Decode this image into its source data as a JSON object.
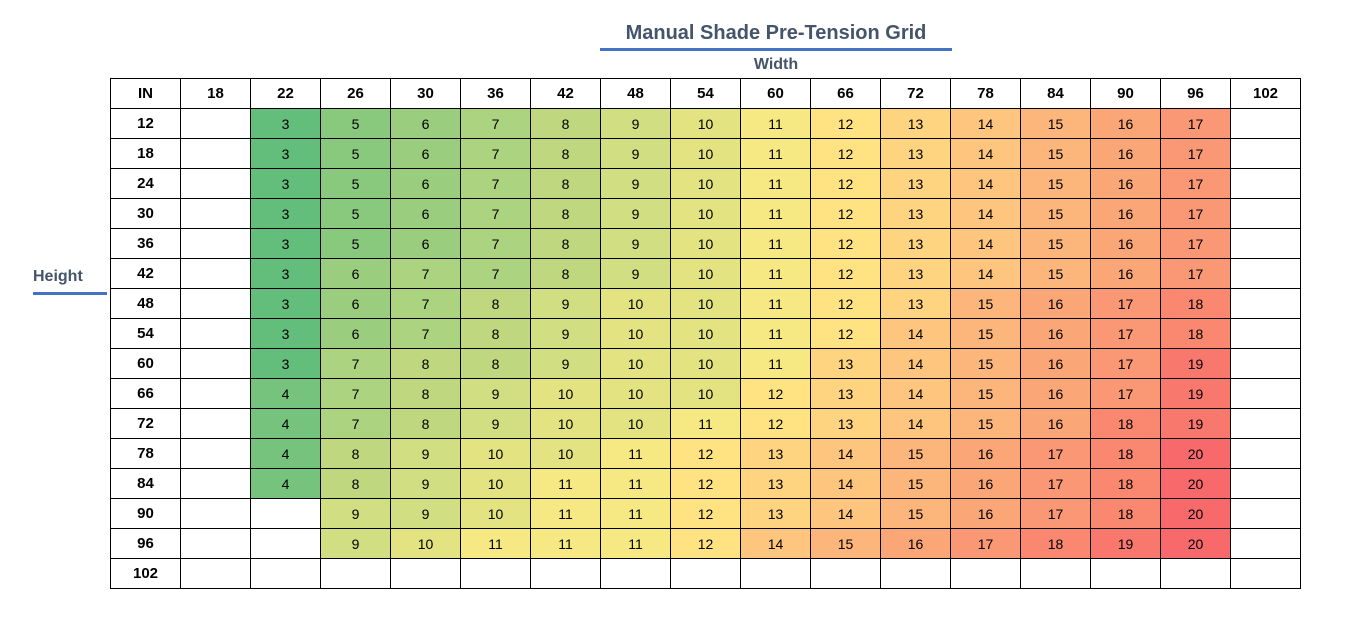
{
  "title": "Manual Shade Pre-Tension Grid",
  "width_label": "Width",
  "height_label": "Height",
  "corner_label": "IN",
  "colors": {
    "title": "#44546a",
    "underline": "#4472c4",
    "scale_low": "#63be7b",
    "scale_mid": "#ffeb84",
    "scale_high": "#f8696b"
  },
  "widths": [
    "18",
    "22",
    "26",
    "30",
    "36",
    "42",
    "48",
    "54",
    "60",
    "66",
    "72",
    "78",
    "84",
    "90",
    "96",
    "102"
  ],
  "rows": [
    {
      "height": "12",
      "values": [
        null,
        3,
        5,
        6,
        7,
        8,
        9,
        10,
        11,
        12,
        13,
        14,
        15,
        16,
        17,
        null
      ]
    },
    {
      "height": "18",
      "values": [
        null,
        3,
        5,
        6,
        7,
        8,
        9,
        10,
        11,
        12,
        13,
        14,
        15,
        16,
        17,
        null
      ]
    },
    {
      "height": "24",
      "values": [
        null,
        3,
        5,
        6,
        7,
        8,
        9,
        10,
        11,
        12,
        13,
        14,
        15,
        16,
        17,
        null
      ]
    },
    {
      "height": "30",
      "values": [
        null,
        3,
        5,
        6,
        7,
        8,
        9,
        10,
        11,
        12,
        13,
        14,
        15,
        16,
        17,
        null
      ]
    },
    {
      "height": "36",
      "values": [
        null,
        3,
        5,
        6,
        7,
        8,
        9,
        10,
        11,
        12,
        13,
        14,
        15,
        16,
        17,
        null
      ]
    },
    {
      "height": "42",
      "values": [
        null,
        3,
        6,
        7,
        7,
        8,
        9,
        10,
        11,
        12,
        13,
        14,
        15,
        16,
        17,
        null
      ]
    },
    {
      "height": "48",
      "values": [
        null,
        3,
        6,
        7,
        8,
        9,
        10,
        10,
        11,
        12,
        13,
        15,
        16,
        17,
        18,
        null
      ]
    },
    {
      "height": "54",
      "values": [
        null,
        3,
        6,
        7,
        8,
        9,
        10,
        10,
        11,
        12,
        14,
        15,
        16,
        17,
        18,
        null
      ]
    },
    {
      "height": "60",
      "values": [
        null,
        3,
        7,
        8,
        8,
        9,
        10,
        10,
        11,
        13,
        14,
        15,
        16,
        17,
        19,
        null
      ]
    },
    {
      "height": "66",
      "values": [
        null,
        4,
        7,
        8,
        9,
        10,
        10,
        10,
        12,
        13,
        14,
        15,
        16,
        17,
        19,
        null
      ]
    },
    {
      "height": "72",
      "values": [
        null,
        4,
        7,
        8,
        9,
        10,
        10,
        11,
        12,
        13,
        14,
        15,
        16,
        18,
        19,
        null
      ]
    },
    {
      "height": "78",
      "values": [
        null,
        4,
        8,
        9,
        10,
        10,
        11,
        12,
        13,
        14,
        15,
        16,
        17,
        18,
        20,
        null
      ]
    },
    {
      "height": "84",
      "values": [
        null,
        4,
        8,
        9,
        10,
        11,
        11,
        12,
        13,
        14,
        15,
        16,
        17,
        18,
        20,
        null
      ]
    },
    {
      "height": "90",
      "values": [
        null,
        null,
        9,
        9,
        10,
        11,
        11,
        12,
        13,
        14,
        15,
        16,
        17,
        18,
        20,
        null
      ]
    },
    {
      "height": "96",
      "values": [
        null,
        null,
        9,
        10,
        11,
        11,
        11,
        12,
        14,
        15,
        16,
        17,
        18,
        19,
        20,
        null
      ]
    },
    {
      "height": "102",
      "values": [
        null,
        null,
        null,
        null,
        null,
        null,
        null,
        null,
        null,
        null,
        null,
        null,
        null,
        null,
        null,
        null
      ]
    }
  ]
}
